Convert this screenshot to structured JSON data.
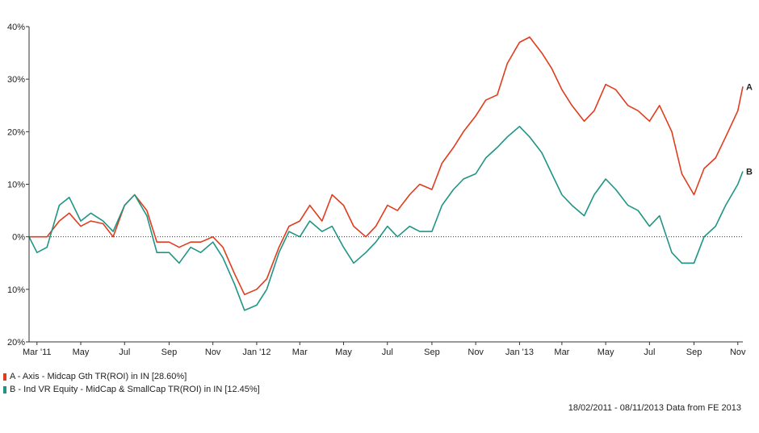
{
  "chart_data": {
    "type": "line",
    "title": "",
    "xlabel": "",
    "ylabel": "",
    "ylim": [
      -20,
      40
    ],
    "yticks": [
      {
        "value": 40,
        "label": "40%"
      },
      {
        "value": 30,
        "label": "30%"
      },
      {
        "value": 20,
        "label": "20%"
      },
      {
        "value": 10,
        "label": "10%"
      },
      {
        "value": 0,
        "label": "0%"
      },
      {
        "value": -10,
        "label": "10%"
      },
      {
        "value": -20,
        "label": "20%"
      }
    ],
    "xticks": [
      {
        "date": "2011-03-01",
        "label": "Mar '11"
      },
      {
        "date": "2011-05-01",
        "label": "May"
      },
      {
        "date": "2011-07-01",
        "label": "Jul"
      },
      {
        "date": "2011-09-01",
        "label": "Sep"
      },
      {
        "date": "2011-11-01",
        "label": "Nov"
      },
      {
        "date": "2012-01-01",
        "label": "Jan '12"
      },
      {
        "date": "2012-03-01",
        "label": "Mar"
      },
      {
        "date": "2012-05-01",
        "label": "May"
      },
      {
        "date": "2012-07-01",
        "label": "Jul"
      },
      {
        "date": "2012-09-01",
        "label": "Sep"
      },
      {
        "date": "2012-11-01",
        "label": "Nov"
      },
      {
        "date": "2013-01-01",
        "label": "Jan '13"
      },
      {
        "date": "2013-03-01",
        "label": "Mar"
      },
      {
        "date": "2013-05-01",
        "label": "May"
      },
      {
        "date": "2013-07-01",
        "label": "Jul"
      },
      {
        "date": "2013-09-01",
        "label": "Sep"
      },
      {
        "date": "2013-11-01",
        "label": "Nov"
      }
    ],
    "xrange": [
      "2011-02-18",
      "2013-11-08"
    ],
    "grid": false,
    "zero_line": "dotted",
    "legend": "bottom-left",
    "series": [
      {
        "name": "A - Axis - Midcap Gth TR(ROI) in IN [28.60%]",
        "end_label": "A",
        "color": "#e03c1e",
        "x": [
          "2011-02-18",
          "2011-03-01",
          "2011-03-15",
          "2011-04-01",
          "2011-04-15",
          "2011-05-01",
          "2011-05-15",
          "2011-06-01",
          "2011-06-15",
          "2011-07-01",
          "2011-07-15",
          "2011-08-01",
          "2011-08-15",
          "2011-09-01",
          "2011-09-15",
          "2011-10-01",
          "2011-10-15",
          "2011-11-01",
          "2011-11-15",
          "2011-12-01",
          "2011-12-15",
          "2012-01-01",
          "2012-01-15",
          "2012-02-01",
          "2012-02-15",
          "2012-03-01",
          "2012-03-15",
          "2012-04-01",
          "2012-04-15",
          "2012-05-01",
          "2012-05-15",
          "2012-06-01",
          "2012-06-15",
          "2012-07-01",
          "2012-07-15",
          "2012-08-01",
          "2012-08-15",
          "2012-09-01",
          "2012-09-15",
          "2012-10-01",
          "2012-10-15",
          "2012-11-01",
          "2012-11-15",
          "2012-12-01",
          "2012-12-15",
          "2013-01-01",
          "2013-01-15",
          "2013-02-01",
          "2013-02-15",
          "2013-03-01",
          "2013-03-15",
          "2013-04-01",
          "2013-04-15",
          "2013-05-01",
          "2013-05-15",
          "2013-06-01",
          "2013-06-15",
          "2013-07-01",
          "2013-07-15",
          "2013-08-01",
          "2013-08-15",
          "2013-09-01",
          "2013-09-15",
          "2013-10-01",
          "2013-10-15",
          "2013-11-01",
          "2013-11-08"
        ],
        "values": [
          0,
          0,
          0,
          3,
          4.5,
          2,
          3,
          2.5,
          0,
          6,
          8,
          5,
          -1,
          -1,
          -2,
          -1,
          -1,
          0,
          -2,
          -7,
          -11,
          -10,
          -8,
          -2,
          2,
          3,
          6,
          3,
          8,
          6,
          2,
          0,
          2,
          6,
          5,
          8,
          10,
          9,
          14,
          17,
          20,
          23,
          26,
          27,
          33,
          37,
          38,
          35,
          32,
          28,
          25,
          22,
          24,
          29,
          28,
          25,
          24,
          22,
          25,
          20,
          12,
          8,
          13,
          15,
          19,
          24,
          28.6
        ]
      },
      {
        "name": "B - Ind VR Equity - MidCap & SmallCap TR(ROI) in IN [12.45%]",
        "end_label": "B",
        "color": "#1f9585",
        "x": [
          "2011-02-18",
          "2011-03-01",
          "2011-03-15",
          "2011-04-01",
          "2011-04-15",
          "2011-05-01",
          "2011-05-15",
          "2011-06-01",
          "2011-06-15",
          "2011-07-01",
          "2011-07-15",
          "2011-08-01",
          "2011-08-15",
          "2011-09-01",
          "2011-09-15",
          "2011-10-01",
          "2011-10-15",
          "2011-11-01",
          "2011-11-15",
          "2011-12-01",
          "2011-12-15",
          "2012-01-01",
          "2012-01-15",
          "2012-02-01",
          "2012-02-15",
          "2012-03-01",
          "2012-03-15",
          "2012-04-01",
          "2012-04-15",
          "2012-05-01",
          "2012-05-15",
          "2012-06-01",
          "2012-06-15",
          "2012-07-01",
          "2012-07-15",
          "2012-08-01",
          "2012-08-15",
          "2012-09-01",
          "2012-09-15",
          "2012-10-01",
          "2012-10-15",
          "2012-11-01",
          "2012-11-15",
          "2012-12-01",
          "2012-12-15",
          "2013-01-01",
          "2013-01-15",
          "2013-02-01",
          "2013-02-15",
          "2013-03-01",
          "2013-03-15",
          "2013-04-01",
          "2013-04-15",
          "2013-05-01",
          "2013-05-15",
          "2013-06-01",
          "2013-06-15",
          "2013-07-01",
          "2013-07-15",
          "2013-08-01",
          "2013-08-15",
          "2013-09-01",
          "2013-09-15",
          "2013-10-01",
          "2013-10-15",
          "2013-11-01",
          "2013-11-08"
        ],
        "values": [
          0,
          -3,
          -2,
          6,
          7.5,
          3,
          4.5,
          3,
          1,
          6,
          8,
          4,
          -3,
          -3,
          -5,
          -2,
          -3,
          -1,
          -4,
          -9,
          -14,
          -13,
          -10,
          -3,
          1,
          0,
          3,
          1,
          2,
          -2,
          -5,
          -3,
          -1,
          2,
          0,
          2,
          1,
          1,
          6,
          9,
          11,
          12,
          15,
          17,
          19,
          21,
          19,
          16,
          12,
          8,
          6,
          4,
          8,
          11,
          9,
          6,
          5,
          2,
          4,
          -3,
          -5,
          -5,
          0,
          2,
          6,
          10,
          12.45
        ]
      }
    ]
  },
  "footer_text": "18/02/2011 - 08/11/2013 Data from FE 2013"
}
